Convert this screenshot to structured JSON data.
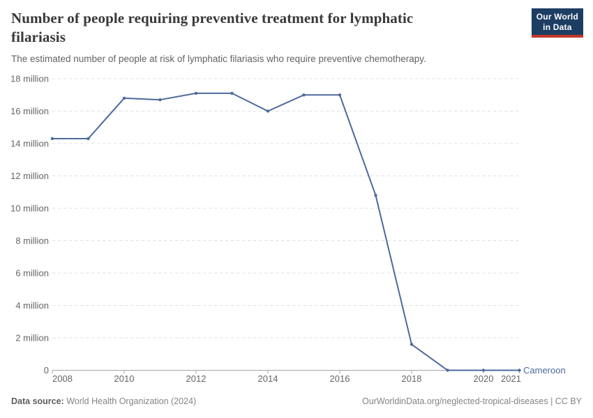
{
  "header": {
    "title": "Number of people requiring preventive treatment for lymphatic filariasis",
    "subtitle": "The estimated number of people at risk of lymphatic filariasis who require preventive chemotherapy."
  },
  "logo": {
    "line1": "Our World",
    "line2": "in Data",
    "bg_color": "#1d3d63",
    "accent_color": "#c0392b"
  },
  "chart_data": {
    "type": "line",
    "title": "Number of people requiring preventive treatment for lymphatic filariasis",
    "xlabel": "",
    "ylabel": "",
    "grid": "horizontal-dashed",
    "legend_position": "end-of-line-label",
    "x": [
      2008,
      2009,
      2010,
      2011,
      2012,
      2013,
      2014,
      2015,
      2016,
      2017,
      2018,
      2019,
      2020,
      2021
    ],
    "series": [
      {
        "name": "Cameroon",
        "color": "#4C6A9C",
        "values": [
          14300000,
          14300000,
          16800000,
          16700000,
          17100000,
          17100000,
          16000000,
          17000000,
          17000000,
          10800000,
          1600000,
          0,
          0,
          0
        ]
      }
    ],
    "ylim": [
      0,
      18000000
    ],
    "y_ticks": [
      {
        "value": 0,
        "label": "0"
      },
      {
        "value": 2000000,
        "label": "2 million"
      },
      {
        "value": 4000000,
        "label": "4 million"
      },
      {
        "value": 6000000,
        "label": "6 million"
      },
      {
        "value": 8000000,
        "label": "8 million"
      },
      {
        "value": 10000000,
        "label": "10 million"
      },
      {
        "value": 12000000,
        "label": "12 million"
      },
      {
        "value": 14000000,
        "label": "14 million"
      },
      {
        "value": 16000000,
        "label": "16 million"
      },
      {
        "value": 18000000,
        "label": "18 million"
      }
    ],
    "x_ticks": [
      2008,
      2010,
      2012,
      2014,
      2016,
      2018,
      2020,
      2021
    ]
  },
  "footer": {
    "data_source_label": "Data source:",
    "data_source": "World Health Organization (2024)",
    "attribution": "OurWorldinData.org/neglected-tropical-diseases | CC BY"
  }
}
